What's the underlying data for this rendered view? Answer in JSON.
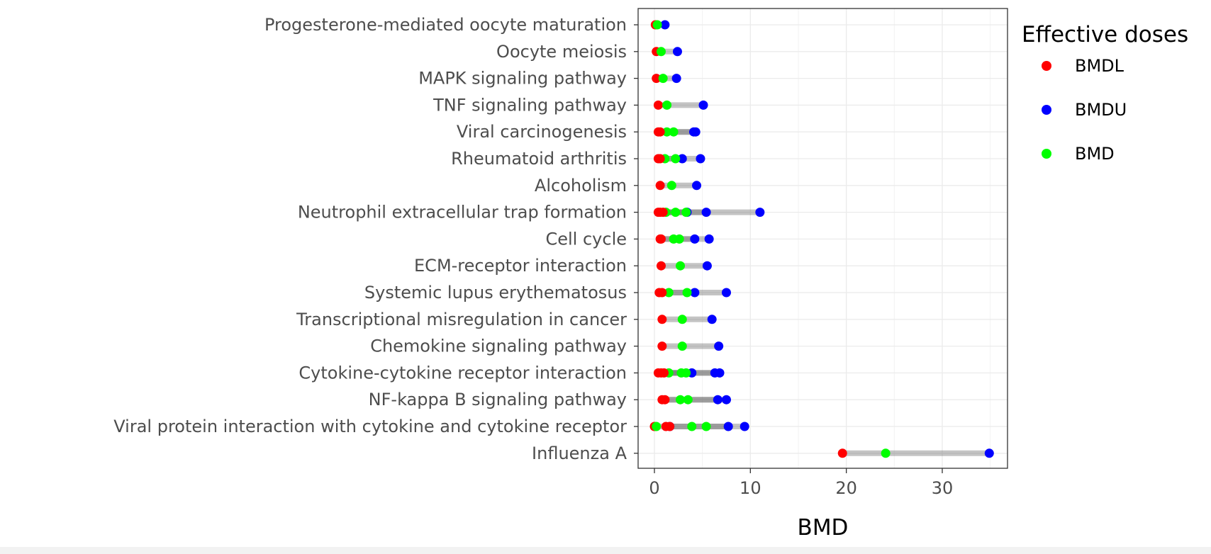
{
  "chart_data": {
    "type": "scatter",
    "title": "",
    "xlabel": "BMD",
    "ylabel": "",
    "xlim": [
      -1.7,
      36.8
    ],
    "xticks": [
      0,
      10,
      20,
      30
    ],
    "grid": true,
    "legend": {
      "title": "Effective doses",
      "placement": "right",
      "entries": [
        {
          "name": "BMDL",
          "color": "#ff0000"
        },
        {
          "name": "BMDU",
          "color": "#0000ff"
        },
        {
          "name": "BMD",
          "color": "#00ff00"
        }
      ]
    },
    "categories": [
      "Progesterone-mediated oocyte maturation",
      "Oocyte meiosis",
      "MAPK signaling pathway",
      "TNF signaling pathway",
      "Viral carcinogenesis",
      "Rheumatoid arthritis",
      "Alcoholism",
      "Neutrophil extracellular trap formation",
      "Cell cycle",
      "ECM-receptor interaction",
      "Systemic lupus erythematosus",
      "Transcriptional misregulation in cancer",
      "Chemokine signaling pathway",
      "Cytokine-cytokine receptor interaction",
      "NF-kappa B signaling pathway",
      "Viral protein interaction with cytokine and cytokine receptor",
      "Influenza A"
    ],
    "intervals": [
      [
        {
          "bmdl": 0.1,
          "bmd": 0.3,
          "bmdu": 1.1
        }
      ],
      [
        {
          "bmdl": 0.2,
          "bmd": 0.7,
          "bmdu": 2.4
        }
      ],
      [
        {
          "bmdl": 0.2,
          "bmd": 0.9,
          "bmdu": 2.3
        }
      ],
      [
        {
          "bmdl": 0.4,
          "bmd": 1.3,
          "bmdu": 5.1
        }
      ],
      [
        {
          "bmdl": 0.4,
          "bmd": 1.3,
          "bmdu": 4.1
        },
        {
          "bmdl": 0.6,
          "bmd": 2.0,
          "bmdu": 4.3
        }
      ],
      [
        {
          "bmdl": 0.4,
          "bmd": 1.1,
          "bmdu": 2.9
        },
        {
          "bmdl": 0.6,
          "bmd": 2.2,
          "bmdu": 4.8
        }
      ],
      [
        {
          "bmdl": 0.6,
          "bmd": 1.8,
          "bmdu": 4.4
        }
      ],
      [
        {
          "bmdl": 0.4,
          "bmd": 1.2,
          "bmdu": 3.4
        },
        {
          "bmdl": 0.6,
          "bmd": 2.2,
          "bmdu": 5.4
        },
        {
          "bmdl": 0.9,
          "bmd": 3.3,
          "bmdu": 11.0
        }
      ],
      [
        {
          "bmdl": 0.6,
          "bmd": 2.0,
          "bmdu": 4.2
        },
        {
          "bmdl": 0.7,
          "bmd": 2.6,
          "bmdu": 5.7
        }
      ],
      [
        {
          "bmdl": 0.7,
          "bmd": 2.7,
          "bmdu": 5.5
        }
      ],
      [
        {
          "bmdl": 0.5,
          "bmd": 1.5,
          "bmdu": 4.2
        },
        {
          "bmdl": 0.8,
          "bmd": 3.4,
          "bmdu": 7.5
        }
      ],
      [
        {
          "bmdl": 0.8,
          "bmd": 2.9,
          "bmdu": 6.0
        }
      ],
      [
        {
          "bmdl": 0.8,
          "bmd": 2.9,
          "bmdu": 6.7
        }
      ],
      [
        {
          "bmdl": 0.4,
          "bmd": 1.5,
          "bmdu": 3.9
        },
        {
          "bmdl": 0.7,
          "bmd": 2.8,
          "bmdu": 6.3
        },
        {
          "bmdl": 1.0,
          "bmd": 3.3,
          "bmdu": 6.8
        }
      ],
      [
        {
          "bmdl": 0.8,
          "bmd": 2.7,
          "bmdu": 6.6
        },
        {
          "bmdl": 1.1,
          "bmd": 3.5,
          "bmdu": 7.5
        }
      ],
      [
        {
          "bmdl": 0.0,
          "bmd": 0.2,
          "bmdu": 1.6
        },
        {
          "bmdl": 1.2,
          "bmd": 3.9,
          "bmdu": 7.7
        },
        {
          "bmdl": 1.6,
          "bmd": 5.4,
          "bmdu": 9.4
        }
      ],
      [
        {
          "bmdl": 19.6,
          "bmd": 24.1,
          "bmdu": 34.9
        }
      ]
    ]
  }
}
